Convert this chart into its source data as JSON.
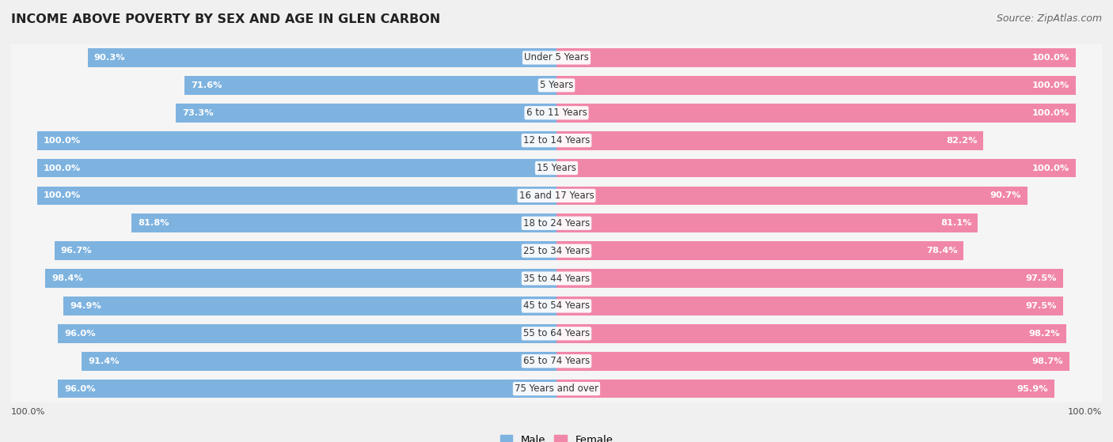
{
  "title": "INCOME ABOVE POVERTY BY SEX AND AGE IN GLEN CARBON",
  "source": "Source: ZipAtlas.com",
  "categories": [
    "Under 5 Years",
    "5 Years",
    "6 to 11 Years",
    "12 to 14 Years",
    "15 Years",
    "16 and 17 Years",
    "18 to 24 Years",
    "25 to 34 Years",
    "35 to 44 Years",
    "45 to 54 Years",
    "55 to 64 Years",
    "65 to 74 Years",
    "75 Years and over"
  ],
  "male_values": [
    90.3,
    71.6,
    73.3,
    100.0,
    100.0,
    100.0,
    81.8,
    96.7,
    98.4,
    94.9,
    96.0,
    91.4,
    96.0
  ],
  "female_values": [
    100.0,
    100.0,
    100.0,
    82.2,
    100.0,
    90.7,
    81.1,
    78.4,
    97.5,
    97.5,
    98.2,
    98.7,
    95.9
  ],
  "male_color": "#7eb3e0",
  "female_color": "#f187a8",
  "row_light": "#f5f5f5",
  "row_dark": "#e8e8e8",
  "male_label": "Male",
  "female_label": "Female",
  "background_color": "#f0f0f0",
  "max_value": 100.0,
  "title_fontsize": 11.5,
  "source_fontsize": 9,
  "label_fontsize": 8.2,
  "cat_fontsize": 8.5
}
